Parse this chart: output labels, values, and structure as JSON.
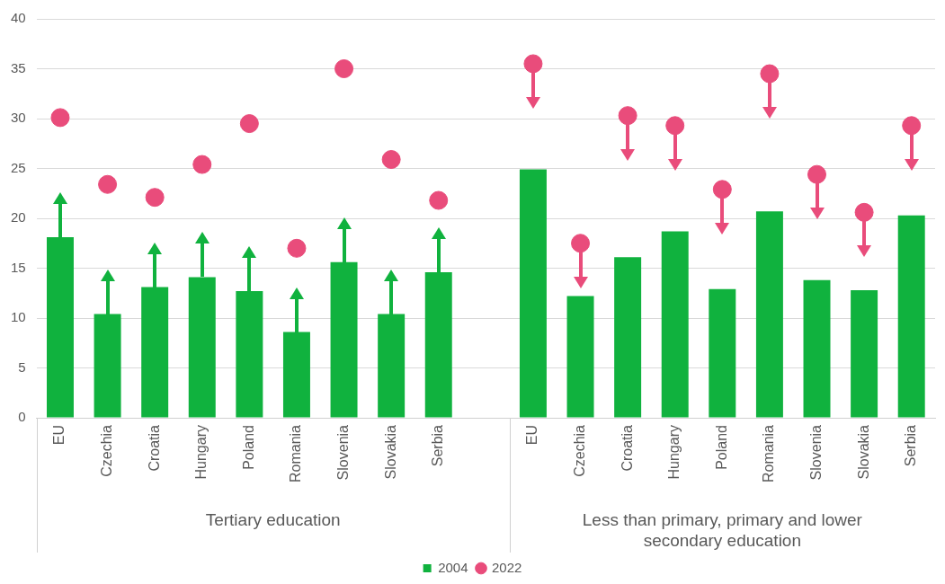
{
  "chart_data": {
    "type": "bar",
    "categories": [
      "EU",
      "Czechia",
      "Croatia",
      "Hungary",
      "Poland",
      "Romania",
      "Slovenia",
      "Slovakia",
      "Serbia",
      null,
      "EU",
      "Czechia",
      "Croatia",
      "Hungary",
      "Poland",
      "Romania",
      "Slovenia",
      "Slovakia",
      "Serbia"
    ],
    "series": [
      {
        "name": "2004",
        "color": "#10b23e",
        "values": [
          18.1,
          10.4,
          13.1,
          14.1,
          12.7,
          8.6,
          15.6,
          10.4,
          14.6,
          null,
          24.9,
          12.2,
          16.1,
          18.7,
          12.9,
          20.7,
          13.8,
          12.8,
          20.3
        ]
      },
      {
        "name": "2022",
        "type": "scatter",
        "color": "#e94c7b",
        "values": [
          30.1,
          23.4,
          22.1,
          25.4,
          29.5,
          17.0,
          35.0,
          25.9,
          21.8,
          null,
          35.5,
          17.5,
          30.3,
          29.3,
          22.9,
          34.5,
          24.4,
          20.6,
          29.3
        ]
      }
    ],
    "annotations": [
      "Tertiary education",
      "Less than primary, primary and lower secondary education"
    ],
    "ylim": [
      0,
      40
    ],
    "yticks": [
      0,
      5,
      10,
      15,
      20,
      25,
      30,
      35,
      40
    ],
    "grid": "y",
    "legend": "bottom",
    "marker": "circle"
  }
}
